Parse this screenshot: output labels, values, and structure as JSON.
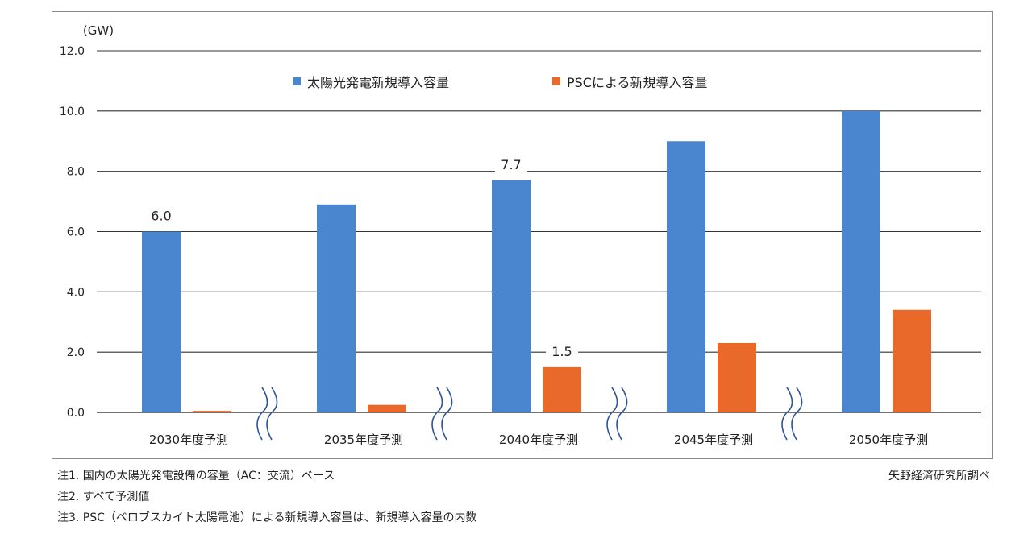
{
  "chart_data": {
    "type": "bar",
    "ylabel": "(GW)",
    "ylim": [
      0,
      12
    ],
    "yticks": [
      "0.0",
      "2.0",
      "4.0",
      "6.0",
      "8.0",
      "10.0",
      "12.0"
    ],
    "categories": [
      "2030年度予測",
      "2035年度予測",
      "2040年度予測",
      "2045年度予測",
      "2050年度予測"
    ],
    "series": [
      {
        "name": "太陽光発電新規導入容量",
        "color": "#4a86cf",
        "values": [
          6.0,
          6.9,
          7.7,
          9.0,
          10.0
        ]
      },
      {
        "name": "PSCによる新規導入容量",
        "color": "#e8692a",
        "values": [
          0.05,
          0.25,
          1.5,
          2.3,
          3.4
        ]
      }
    ],
    "data_labels": [
      {
        "series": 0,
        "index": 0,
        "text": "6.0"
      },
      {
        "series": 0,
        "index": 2,
        "text": "7.7"
      },
      {
        "series": 1,
        "index": 2,
        "text": "1.5"
      }
    ],
    "axis_break_symbol": "≈",
    "legend_position": "top-center",
    "grid": true
  },
  "notes": [
    "注1.  国内の太陽光発電設備の容量（AC：交流）ベース",
    "注2.  すべて予測値",
    "注3.  PSC（ペロブスカイト太陽電池）による新規導入容量は、新規導入容量の内数"
  ],
  "source": "矢野経済研究所調べ"
}
